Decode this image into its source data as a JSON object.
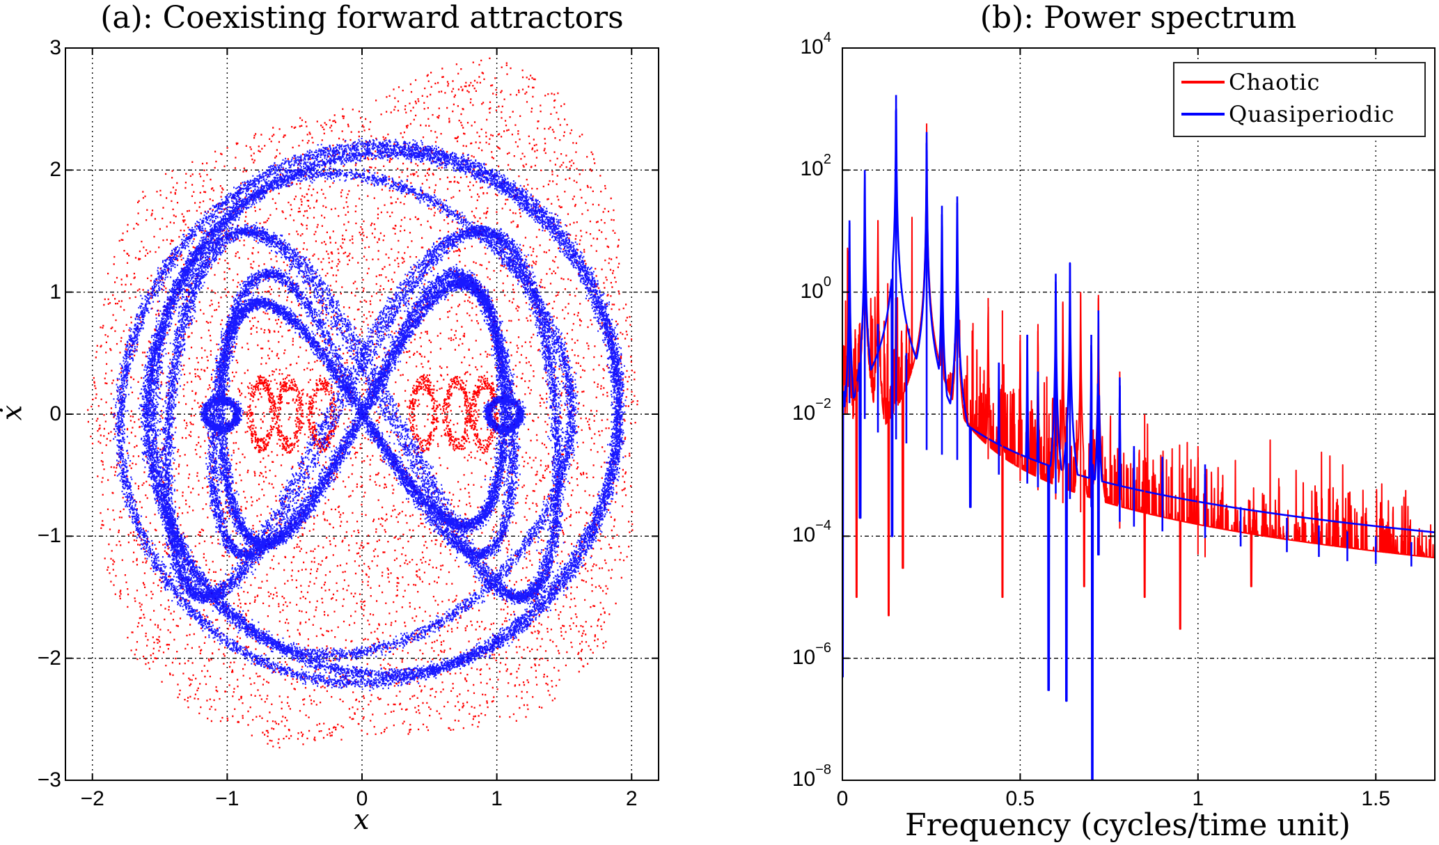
{
  "colors": {
    "chaotic": "#ff0000",
    "quasiperiodic": "#0000ff",
    "axis": "#000000",
    "grid": "#000000"
  },
  "chart_data": [
    {
      "panel": "a",
      "type": "scatter",
      "title": "(a): Coexisting forward attractors",
      "xlabel": "x",
      "ylabel": "ẋ",
      "xlim": [
        -2.2,
        2.2
      ],
      "ylim": [
        -3,
        3
      ],
      "xticks": [
        -2,
        -1,
        0,
        1,
        2
      ],
      "xtick_labels": [
        "−2",
        "−1",
        "0",
        "1",
        "2"
      ],
      "yticks": [
        -3,
        -2,
        -1,
        0,
        1,
        2,
        3
      ],
      "ytick_labels": [
        "−3",
        "−2",
        "−1",
        "0",
        "1",
        "2",
        "3"
      ],
      "grid": true,
      "series": [
        {
          "name": "Chaotic",
          "color": "#ff0000",
          "marker": "dot",
          "description": "dense point cloud filling region",
          "extent": {
            "x": [
              -2.1,
              2.05
            ],
            "y": [
              -2.75,
              2.95
            ]
          },
          "envelope": [
            [
              -2.05,
              0
            ],
            [
              -1.9,
              1.2
            ],
            [
              -1.6,
              1.9
            ],
            [
              -1.2,
              2.1
            ],
            [
              -0.6,
              2.4
            ],
            [
              0,
              2.55
            ],
            [
              0.6,
              2.85
            ],
            [
              1.0,
              2.95
            ],
            [
              1.5,
              2.6
            ],
            [
              1.85,
              1.8
            ],
            [
              2.05,
              0.4
            ],
            [
              2.0,
              -1.0
            ],
            [
              1.8,
              -1.9
            ],
            [
              1.3,
              -2.5
            ],
            [
              0.6,
              -2.6
            ],
            [
              0,
              -2.65
            ],
            [
              -0.6,
              -2.75
            ],
            [
              -1.2,
              -2.5
            ],
            [
              -1.7,
              -2.0
            ],
            [
              -1.95,
              -1.1
            ]
          ],
          "inner_loop_centers": [
            [
              -0.75,
              0
            ],
            [
              -0.55,
              0
            ],
            [
              -0.3,
              0
            ],
            [
              0.45,
              0
            ],
            [
              0.7,
              0
            ],
            [
              0.9,
              0
            ]
          ]
        },
        {
          "name": "Quasiperiodic",
          "color": "#0000ff",
          "marker": "dot",
          "description": "torus-like bands: figure-eight core plus nested outer loops",
          "bands": [
            {
              "kind": "figure-eight",
              "x_amp": 1.05,
              "y_amp": 1.1
            },
            {
              "kind": "figure-eight",
              "x_amp": 1.55,
              "y_amp": 1.45
            },
            {
              "kind": "loop",
              "x_amp": 1.75,
              "y_amp": 2.15
            },
            {
              "kind": "loop",
              "x_amp": 1.85,
              "y_amp": 2.25
            },
            {
              "kind": "loop",
              "x_amp": 1.35,
              "y_amp": 1.9
            }
          ]
        }
      ]
    },
    {
      "panel": "b",
      "type": "line",
      "title": "(b): Power spectrum",
      "xlabel": "Frequency (cycles/time unit)",
      "ylabel": "",
      "yscale": "log",
      "xlim": [
        0,
        1.666
      ],
      "ylim": [
        1e-08,
        10000.0
      ],
      "xticks": [
        0,
        0.5,
        1,
        1.5
      ],
      "xtick_labels": [
        "0",
        "0.5",
        "1",
        "1.5"
      ],
      "yticks": [
        1e-08,
        1e-06,
        0.0001,
        0.01,
        1.0,
        100.0,
        10000.0
      ],
      "ytick_labels": [
        {
          "base": "10",
          "exp": "−8"
        },
        {
          "base": "10",
          "exp": "−6"
        },
        {
          "base": "10",
          "exp": "−4"
        },
        {
          "base": "10",
          "exp": "−2"
        },
        {
          "base": "10",
          "exp": "0"
        },
        {
          "base": "10",
          "exp": "2"
        },
        {
          "base": "10",
          "exp": "4"
        }
      ],
      "grid": true,
      "legend": {
        "position": "top-right",
        "entries": [
          "Chaotic",
          "Quasiperiodic"
        ]
      },
      "series": [
        {
          "name": "Chaotic",
          "color": "#ff0000",
          "baseline": [
            [
              0,
              0.05
            ],
            [
              0.1,
              0.02
            ],
            [
              0.2,
              0.01
            ],
            [
              0.3,
              0.005
            ],
            [
              0.4,
              0.002
            ],
            [
              0.5,
              0.0008
            ],
            [
              0.6,
              0.0004
            ],
            [
              0.7,
              0.0002
            ],
            [
              0.8,
              0.00012
            ],
            [
              0.9,
              8e-05
            ],
            [
              1.0,
              5e-05
            ],
            [
              1.1,
              3e-05
            ],
            [
              1.2,
              2e-05
            ],
            [
              1.3,
              1.8e-05
            ],
            [
              1.4,
              1.6e-05
            ],
            [
              1.5,
              1.5e-05
            ],
            [
              1.666,
              1.4e-05
            ]
          ],
          "peaks": [
            [
              0.02,
              3
            ],
            [
              0.063,
              60
            ],
            [
              0.1,
              15
            ],
            [
              0.15,
              0.8
            ],
            [
              0.18,
              0.3
            ],
            [
              0.237,
              580
            ],
            [
              0.28,
              8
            ],
            [
              0.323,
              20
            ],
            [
              0.41,
              0.8
            ],
            [
              0.45,
              0.5
            ],
            [
              0.5,
              0.2
            ],
            [
              0.55,
              0.3
            ],
            [
              0.6,
              0.3
            ],
            [
              0.62,
              0.7
            ],
            [
              0.67,
              1.0
            ],
            [
              0.72,
              0.9
            ],
            [
              0.78,
              0.05
            ],
            [
              0.85,
              0.01
            ],
            [
              1.0,
              0.003
            ],
            [
              1.02,
              0.0008
            ]
          ],
          "dips": [
            [
              0.04,
              1e-05
            ],
            [
              0.13,
              5e-06
            ],
            [
              0.17,
              3e-05
            ],
            [
              0.45,
              1e-05
            ],
            [
              0.68,
              1.5e-05
            ],
            [
              0.85,
              1e-05
            ],
            [
              0.95,
              3e-06
            ],
            [
              1.15,
              1.5e-05
            ]
          ]
        },
        {
          "name": "Quasiperiodic",
          "color": "#0000ff",
          "baseline": [
            [
              0,
              0.02
            ],
            [
              0.1,
              0.005
            ],
            [
              0.2,
              0.003
            ],
            [
              0.3,
              0.002
            ],
            [
              0.4,
              0.0012
            ],
            [
              0.5,
              0.0008
            ],
            [
              0.6,
              0.0005
            ],
            [
              0.7,
              0.0003
            ],
            [
              0.8,
              0.00015
            ],
            [
              0.9,
              0.00012
            ],
            [
              1.0,
              0.0001
            ],
            [
              1.1,
              7e-05
            ],
            [
              1.2,
              6e-05
            ],
            [
              1.3,
              5e-05
            ],
            [
              1.4,
              4e-05
            ],
            [
              1.5,
              3.5e-05
            ],
            [
              1.666,
              3e-05
            ]
          ],
          "peaks": [
            [
              0.02,
              15
            ],
            [
              0.063,
              100
            ],
            [
              0.1,
              0.3
            ],
            [
              0.151,
              1700
            ],
            [
              0.18,
              0.1
            ],
            [
              0.237,
              420
            ],
            [
              0.28,
              26
            ],
            [
              0.323,
              37
            ],
            [
              0.44,
              0.07
            ],
            [
              0.52,
              0.2
            ],
            [
              0.55,
              0.05
            ],
            [
              0.6,
              2
            ],
            [
              0.64,
              3
            ],
            [
              0.7,
              0.2
            ],
            [
              0.72,
              0.5
            ],
            [
              0.78,
              0.04
            ],
            [
              0.82,
              0.003
            ],
            [
              0.9,
              0.002
            ],
            [
              1.02,
              0.0015
            ],
            [
              1.12,
              0.0003
            ],
            [
              1.25,
              0.0002
            ],
            [
              1.34,
              0.00015
            ],
            [
              1.42,
              0.00012
            ],
            [
              1.5,
              0.0001
            ],
            [
              1.6,
              8e-05
            ]
          ],
          "dips": [
            [
              0.0,
              5e-07
            ],
            [
              0.05,
              0.0002
            ],
            [
              0.14,
              0.0001
            ],
            [
              0.36,
              0.0003
            ],
            [
              0.58,
              3e-07
            ],
            [
              0.63,
              2e-07
            ],
            [
              0.703,
              1e-08
            ],
            [
              0.72,
              5e-05
            ]
          ]
        }
      ]
    }
  ]
}
